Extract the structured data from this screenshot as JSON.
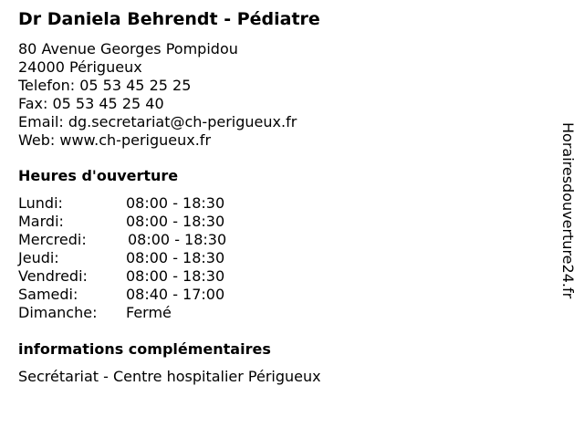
{
  "title": "Dr Daniela Behrendt - Pédiatre",
  "contact": [
    "80 Avenue Georges Pompidou",
    "24000 Périgueux",
    "Telefon: 05 53 45 25 25",
    "Fax: 05 53 45 25 40",
    "Email: dg.secretariat@ch-perigueux.fr",
    "Web: www.ch-perigueux.fr"
  ],
  "hours_heading": "Heures d'ouverture",
  "hours": [
    {
      "day": "Lundi:",
      "time": "08:00 - 18:30"
    },
    {
      "day": "Mardi:",
      "time": "08:00 - 18:30"
    },
    {
      "day": "Mercredi:",
      "time": "08:00 - 18:30"
    },
    {
      "day": "Jeudi:",
      "time": "08:00 - 18:30"
    },
    {
      "day": "Vendredi:",
      "time": "08:00 - 18:30"
    },
    {
      "day": "Samedi:",
      "time": "08:40 - 17:00"
    },
    {
      "day": "Dimanche:",
      "time": "Fermé"
    }
  ],
  "info_heading": "informations complémentaires",
  "info_text": "Secrétariat - Centre hospitalier Périgueux",
  "watermark": "Horairesdouverture24.fr"
}
